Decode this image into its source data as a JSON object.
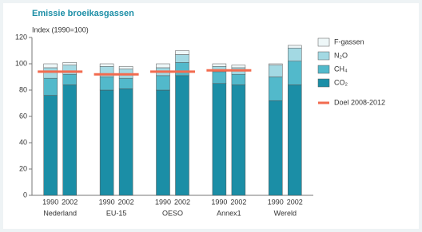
{
  "chart_data": {
    "type": "stacked-bar",
    "title": "Emissie broeikasgassen",
    "ylabel": "Index (1990=100)",
    "groups": [
      "Nederland",
      "EU-15",
      "OESO",
      "Annex1",
      "Wereld"
    ],
    "categories": [
      "1990",
      "2002",
      "1990",
      "2002",
      "1990",
      "2002",
      "1990",
      "2002",
      "1990",
      "2002"
    ],
    "series": [
      {
        "name": "CO₂",
        "color": "#1b8ea6",
        "values": [
          76,
          84,
          80,
          81,
          80,
          91,
          85,
          84,
          72,
          84
        ]
      },
      {
        "name": "CH₄",
        "color": "#52b9cb",
        "values": [
          13,
          8,
          10,
          8,
          11,
          10,
          9,
          8,
          18,
          18
        ]
      },
      {
        "name": "N₂O",
        "color": "#a3d9e3",
        "values": [
          8,
          7,
          8,
          7,
          6,
          6,
          4,
          5,
          9,
          10
        ]
      },
      {
        "name": "F-gassen",
        "color": "#eef7f8",
        "values": [
          3,
          2,
          2,
          2,
          3,
          3,
          2,
          2,
          1,
          2
        ]
      }
    ],
    "target": {
      "name": "Doel 2008-2012",
      "color": "#f26b4f",
      "values": [
        94,
        92,
        94,
        95,
        null
      ]
    },
    "ylim": [
      0,
      120
    ],
    "yticks": [
      0,
      20,
      40,
      60,
      80,
      100,
      120
    ]
  }
}
